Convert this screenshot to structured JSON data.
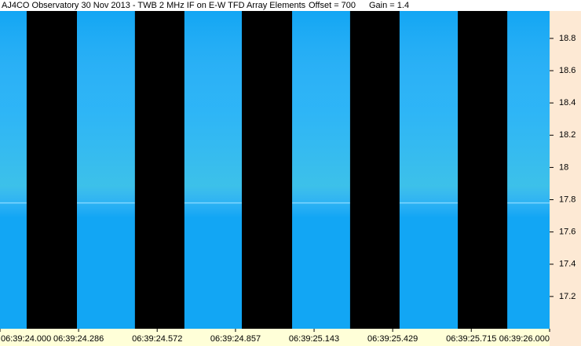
{
  "chart_data": {
    "type": "spectrogram",
    "title": "AJ4CO Observatory 30 Nov 2013 - TWB 2 MHz IF on E-W TFD Array Elements",
    "annotations": [
      "Offset = 700",
      "Gain = 1.4"
    ],
    "color": "#12a6f4",
    "blank_color": "#000000",
    "blank_intervals": [
      [
        24.097,
        24.28
      ],
      [
        24.491,
        24.671
      ],
      [
        24.88,
        25.063
      ],
      [
        25.274,
        25.454
      ],
      [
        25.666,
        25.846
      ]
    ],
    "hline": 17.78,
    "xlim": [
      24,
      26
    ],
    "xticks": [
      {
        "value": 24,
        "label": "06:39:24.000"
      },
      {
        "value": 24.286,
        "label": "06:39:24.286"
      },
      {
        "value": 24.572,
        "label": "06:39:24.572"
      },
      {
        "value": 24.857,
        "label": "06:39:24.857"
      },
      {
        "value": 25.143,
        "label": "06:39:25.143"
      },
      {
        "value": 25.429,
        "label": "06:39:25.429"
      },
      {
        "value": 25.715,
        "label": "06:39:25.715"
      },
      {
        "value": 26,
        "label": "06:39:26.000"
      }
    ],
    "ylim": [
      17.0,
      18.97
    ],
    "yticks": [
      17.2,
      17.4,
      17.6,
      17.8,
      18.0,
      18.2,
      18.4,
      18.6,
      18.8
    ]
  }
}
